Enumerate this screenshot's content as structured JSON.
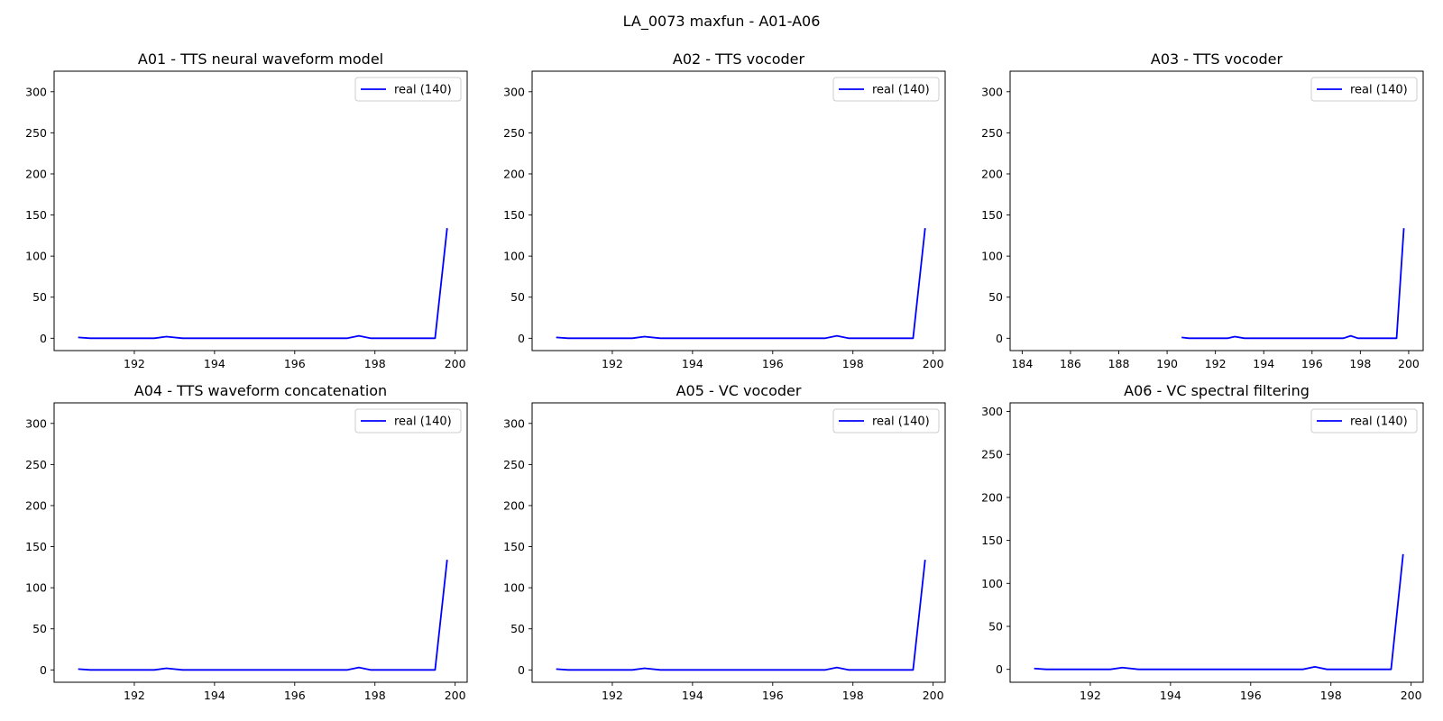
{
  "figure": {
    "suptitle": "LA_0073 maxfun - A01-A06"
  },
  "chart_data": [
    {
      "type": "line",
      "title": "A01 - TTS neural waveform model",
      "xlim": [
        190.0,
        200.3
      ],
      "ylim": [
        -15,
        325
      ],
      "xticks": [
        192,
        194,
        196,
        198,
        200
      ],
      "yticks": [
        0,
        50,
        100,
        150,
        200,
        250,
        300
      ],
      "legend": "upper-right",
      "series": [
        {
          "name": "real (140)",
          "color": "#0000ff",
          "x": [
            190.6,
            190.9,
            191.2,
            191.5,
            191.9,
            192.2,
            192.5,
            192.8,
            193.2,
            193.5,
            193.8,
            194.1,
            194.5,
            194.8,
            195.1,
            195.4,
            195.8,
            196.1,
            196.4,
            196.7,
            197.0,
            197.3,
            197.6,
            197.9,
            198.2,
            198.6,
            198.9,
            199.2,
            199.5,
            199.8
          ],
          "y": [
            1,
            0,
            0,
            0,
            0,
            0,
            0,
            2,
            0,
            0,
            0,
            0,
            0,
            0,
            0,
            0,
            0,
            0,
            0,
            0,
            0,
            0,
            3,
            0,
            0,
            0,
            0,
            0,
            0,
            134
          ]
        }
      ]
    },
    {
      "type": "line",
      "title": "A02 - TTS vocoder",
      "xlim": [
        190.0,
        200.3
      ],
      "ylim": [
        -15,
        325
      ],
      "xticks": [
        192,
        194,
        196,
        198,
        200
      ],
      "yticks": [
        0,
        50,
        100,
        150,
        200,
        250,
        300
      ],
      "legend": "upper-right",
      "series": [
        {
          "name": "real (140)",
          "color": "#0000ff",
          "x": [
            190.6,
            190.9,
            191.2,
            191.5,
            191.9,
            192.2,
            192.5,
            192.8,
            193.2,
            193.5,
            193.8,
            194.1,
            194.5,
            194.8,
            195.1,
            195.4,
            195.8,
            196.1,
            196.4,
            196.7,
            197.0,
            197.3,
            197.6,
            197.9,
            198.2,
            198.6,
            198.9,
            199.2,
            199.5,
            199.8
          ],
          "y": [
            1,
            0,
            0,
            0,
            0,
            0,
            0,
            2,
            0,
            0,
            0,
            0,
            0,
            0,
            0,
            0,
            0,
            0,
            0,
            0,
            0,
            0,
            3,
            0,
            0,
            0,
            0,
            0,
            0,
            134
          ]
        }
      ]
    },
    {
      "type": "line",
      "title": "A03 - TTS vocoder",
      "xlim": [
        183.5,
        200.6
      ],
      "ylim": [
        -15,
        325
      ],
      "xticks": [
        184,
        186,
        188,
        190,
        192,
        194,
        196,
        198,
        200
      ],
      "yticks": [
        0,
        50,
        100,
        150,
        200,
        250,
        300
      ],
      "legend": "upper-right",
      "series": [
        {
          "name": "real (140)",
          "color": "#0000ff",
          "x": [
            190.6,
            190.9,
            191.2,
            191.5,
            191.9,
            192.2,
            192.5,
            192.8,
            193.2,
            193.5,
            193.8,
            194.1,
            194.5,
            194.8,
            195.1,
            195.4,
            195.8,
            196.1,
            196.4,
            196.7,
            197.0,
            197.3,
            197.6,
            197.9,
            198.2,
            198.6,
            198.9,
            199.2,
            199.5,
            199.8
          ],
          "y": [
            1,
            0,
            0,
            0,
            0,
            0,
            0,
            2,
            0,
            0,
            0,
            0,
            0,
            0,
            0,
            0,
            0,
            0,
            0,
            0,
            0,
            0,
            3,
            0,
            0,
            0,
            0,
            0,
            0,
            134
          ]
        }
      ]
    },
    {
      "type": "line",
      "title": "A04 - TTS waveform concatenation",
      "xlim": [
        190.0,
        200.3
      ],
      "ylim": [
        -15,
        325
      ],
      "xticks": [
        192,
        194,
        196,
        198,
        200
      ],
      "yticks": [
        0,
        50,
        100,
        150,
        200,
        250,
        300
      ],
      "legend": "upper-right",
      "series": [
        {
          "name": "real (140)",
          "color": "#0000ff",
          "x": [
            190.6,
            190.9,
            191.2,
            191.5,
            191.9,
            192.2,
            192.5,
            192.8,
            193.2,
            193.5,
            193.8,
            194.1,
            194.5,
            194.8,
            195.1,
            195.4,
            195.8,
            196.1,
            196.4,
            196.7,
            197.0,
            197.3,
            197.6,
            197.9,
            198.2,
            198.6,
            198.9,
            199.2,
            199.5,
            199.8
          ],
          "y": [
            1,
            0,
            0,
            0,
            0,
            0,
            0,
            2,
            0,
            0,
            0,
            0,
            0,
            0,
            0,
            0,
            0,
            0,
            0,
            0,
            0,
            0,
            3,
            0,
            0,
            0,
            0,
            0,
            0,
            134
          ]
        }
      ]
    },
    {
      "type": "line",
      "title": "A05 - VC vocoder",
      "xlim": [
        190.0,
        200.3
      ],
      "ylim": [
        -15,
        325
      ],
      "xticks": [
        192,
        194,
        196,
        198,
        200
      ],
      "yticks": [
        0,
        50,
        100,
        150,
        200,
        250,
        300
      ],
      "legend": "upper-right",
      "series": [
        {
          "name": "real (140)",
          "color": "#0000ff",
          "x": [
            190.6,
            190.9,
            191.2,
            191.5,
            191.9,
            192.2,
            192.5,
            192.8,
            193.2,
            193.5,
            193.8,
            194.1,
            194.5,
            194.8,
            195.1,
            195.4,
            195.8,
            196.1,
            196.4,
            196.7,
            197.0,
            197.3,
            197.6,
            197.9,
            198.2,
            198.6,
            198.9,
            199.2,
            199.5,
            199.8
          ],
          "y": [
            1,
            0,
            0,
            0,
            0,
            0,
            0,
            2,
            0,
            0,
            0,
            0,
            0,
            0,
            0,
            0,
            0,
            0,
            0,
            0,
            0,
            0,
            3,
            0,
            0,
            0,
            0,
            0,
            0,
            134
          ]
        }
      ]
    },
    {
      "type": "line",
      "title": "A06 - VC spectral filtering",
      "xlim": [
        190.0,
        200.3
      ],
      "ylim": [
        -15,
        310
      ],
      "xticks": [
        192,
        194,
        196,
        198,
        200
      ],
      "yticks": [
        0,
        50,
        100,
        150,
        200,
        250,
        300
      ],
      "legend": "upper-right",
      "series": [
        {
          "name": "real (140)",
          "color": "#0000ff",
          "x": [
            190.6,
            190.9,
            191.2,
            191.5,
            191.9,
            192.2,
            192.5,
            192.8,
            193.2,
            193.5,
            193.8,
            194.1,
            194.5,
            194.8,
            195.1,
            195.4,
            195.8,
            196.1,
            196.4,
            196.7,
            197.0,
            197.3,
            197.6,
            197.9,
            198.2,
            198.6,
            198.9,
            199.2,
            199.5,
            199.8
          ],
          "y": [
            1,
            0,
            0,
            0,
            0,
            0,
            0,
            2,
            0,
            0,
            0,
            0,
            0,
            0,
            0,
            0,
            0,
            0,
            0,
            0,
            0,
            0,
            3,
            0,
            0,
            0,
            0,
            0,
            0,
            134
          ]
        }
      ]
    }
  ]
}
